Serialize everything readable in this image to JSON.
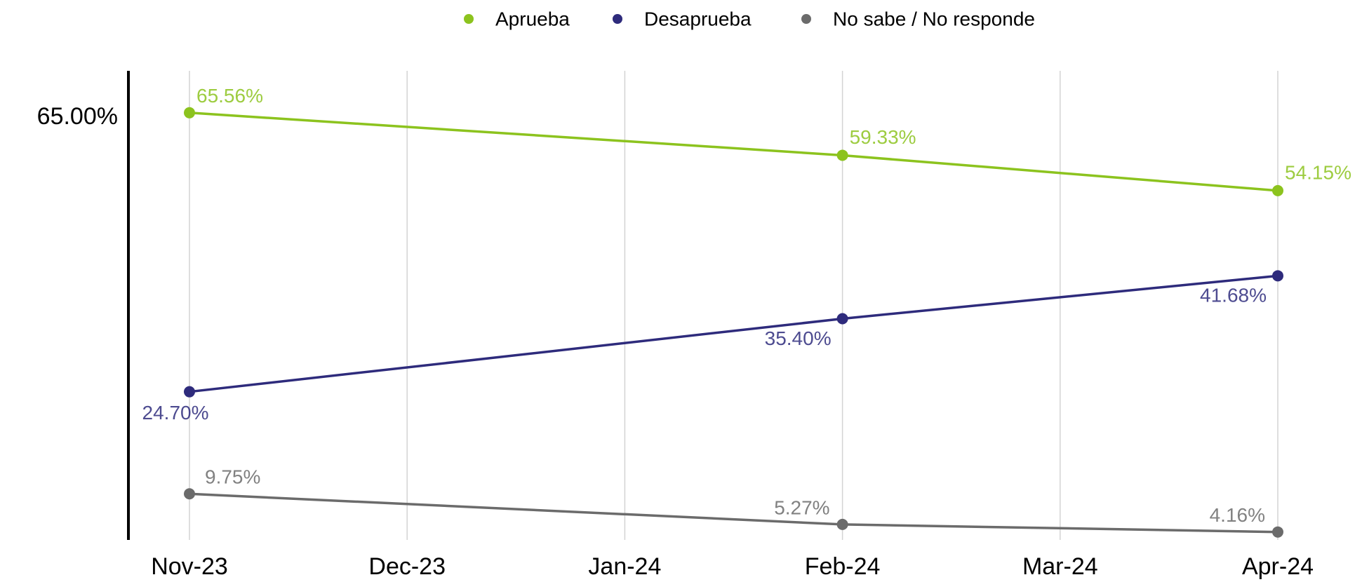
{
  "chart_data": {
    "type": "line",
    "x": [
      "2023-11",
      "2024-02",
      "2024-04"
    ],
    "xticks": [
      {
        "value": "2023-11",
        "label": "Nov-23"
      },
      {
        "value": "2023-12",
        "label": "Dec-23"
      },
      {
        "value": "2024-01",
        "label": "Jan-24"
      },
      {
        "value": "2024-02",
        "label": "Feb-24"
      },
      {
        "value": "2024-03",
        "label": "Mar-24"
      },
      {
        "value": "2024-04",
        "label": "Apr-24"
      }
    ],
    "ylim": [
      3,
      71.7
    ],
    "yticks": [
      {
        "value": 65,
        "label": "65.00%"
      }
    ],
    "grid": true,
    "legend": "top",
    "series": [
      {
        "name": "Aprueba",
        "color": "#8cc31e",
        "values": [
          65.56,
          59.33,
          54.15
        ],
        "value_labels": [
          "65.56%",
          "59.33%",
          "54.15%"
        ]
      },
      {
        "name": "Desaprueba",
        "color": "#2e2b7c",
        "values": [
          24.7,
          35.4,
          41.68
        ],
        "value_labels": [
          "24.70%",
          "35.40%",
          "41.68%"
        ]
      },
      {
        "name": "No sabe / No responde",
        "color": "#6b6b6b",
        "values": [
          9.75,
          5.27,
          4.16
        ],
        "value_labels": [
          "9.75%",
          "5.27%",
          "4.16%"
        ]
      }
    ]
  }
}
